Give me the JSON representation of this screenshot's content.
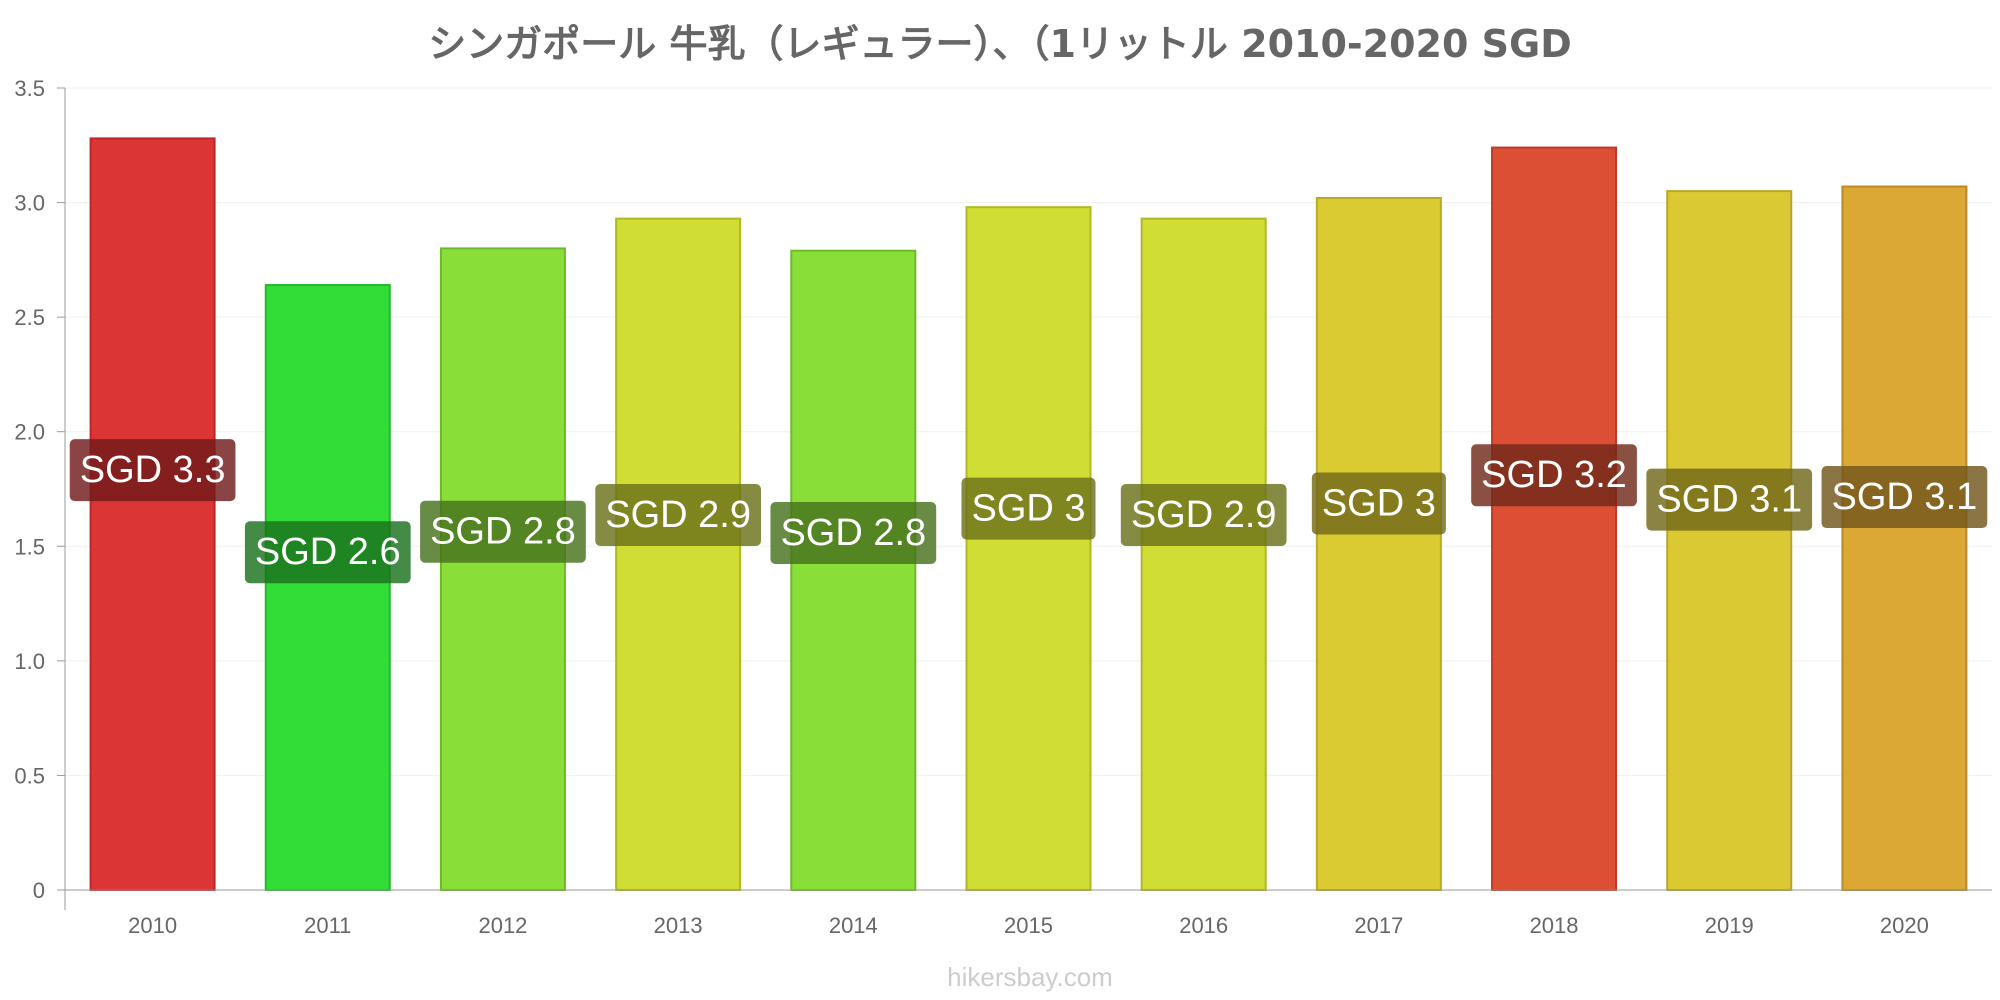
{
  "chart_data": {
    "type": "bar",
    "title": "シンガポール 牛乳（レギュラー）、（1リットル 2010-2020 SGD",
    "xlabel": "",
    "ylabel": "",
    "ylim": [
      0,
      3.5
    ],
    "y_ticks": [
      "0",
      "0.5",
      "1.0",
      "1.5",
      "2.0",
      "2.5",
      "3.0",
      "3.5"
    ],
    "y_tick_values": [
      0,
      0.5,
      1.0,
      1.5,
      2.0,
      2.5,
      3.0,
      3.5
    ],
    "grid": true,
    "categories": [
      "2010",
      "2011",
      "2012",
      "2013",
      "2014",
      "2015",
      "2016",
      "2017",
      "2018",
      "2019",
      "2020"
    ],
    "values": [
      3.28,
      2.64,
      2.8,
      2.93,
      2.79,
      2.98,
      2.93,
      3.02,
      3.24,
      3.05,
      3.07
    ],
    "data_labels": [
      "SGD 3.3",
      "SGD 2.6",
      "SGD 2.8",
      "SGD 2.9",
      "SGD 2.8",
      "SGD 3",
      "SGD 2.9",
      "SGD 3",
      "SGD 3.2",
      "SGD 3.1",
      "SGD 3.1"
    ],
    "bar_colors": [
      "#dc3535",
      "#33dd38",
      "#8ade38",
      "#cfdd35",
      "#8ade38",
      "#d0dd35",
      "#cfdd35",
      "#dbcb33",
      "#dc4f35",
      "#dbc933",
      "#dba835"
    ],
    "bar_borders": [
      "#c02525",
      "#25b82a",
      "#6eb92a",
      "#adb925",
      "#6eb92a",
      "#aeb925",
      "#adb925",
      "#b9a925",
      "#c03a25",
      "#b9a725",
      "#b98a25"
    ],
    "label_backgrounds": [
      "#721b1b",
      "#1a721d",
      "#47721d",
      "#6b721b",
      "#47721d",
      "#6c721b",
      "#6b721b",
      "#72691a",
      "#72291b",
      "#72681a",
      "#72571b"
    ]
  },
  "watermark": "hikersbay.com"
}
